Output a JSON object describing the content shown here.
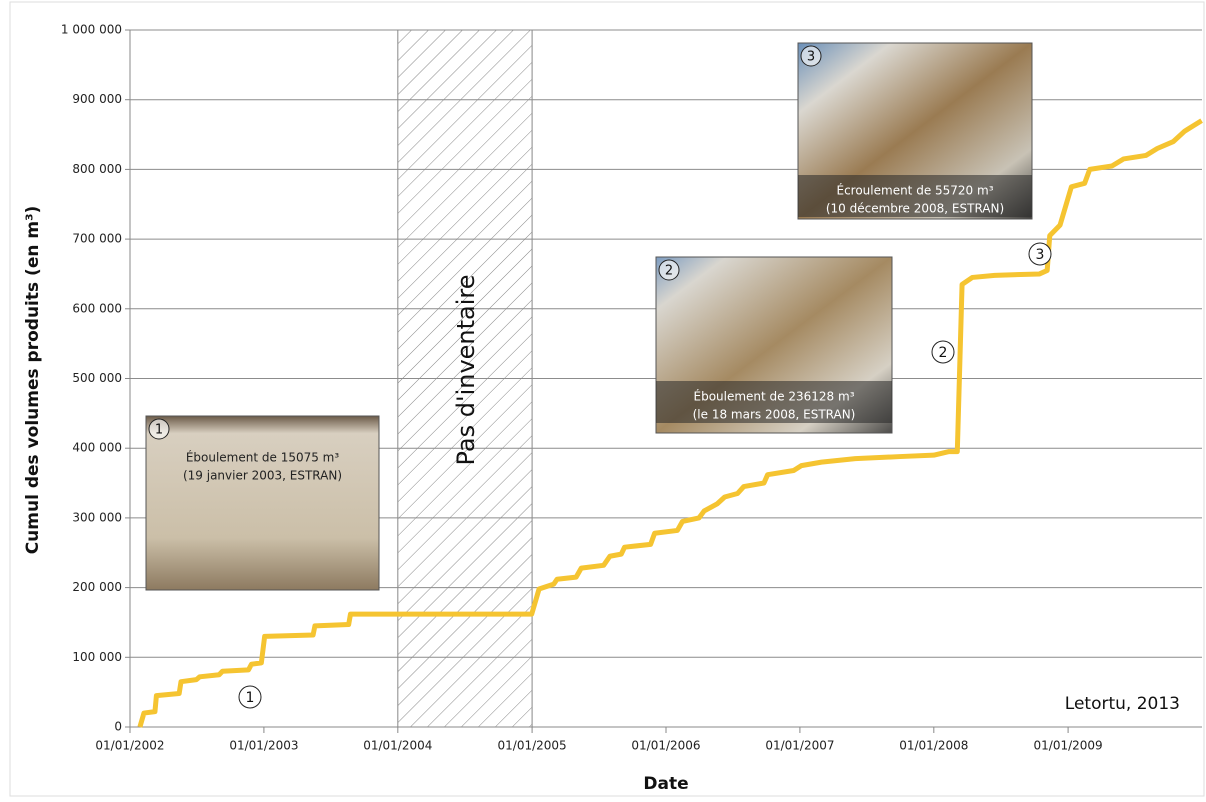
{
  "chart_data": {
    "type": "line",
    "y_label": "Cumul des volumes produits (en m³)",
    "x_label": "Date",
    "source": "Letortu, 2013",
    "color": "#f5c431",
    "grid": true,
    "xlim": [
      "2002-01-01",
      "2010-01-01"
    ],
    "ylim": [
      0,
      1000000
    ],
    "xticks": [
      {
        "value": "2002-01-01",
        "label": "01/01/2002"
      },
      {
        "value": "2003-01-01",
        "label": "01/01/2003"
      },
      {
        "value": "2004-01-01",
        "label": "01/01/2004"
      },
      {
        "value": "2005-01-01",
        "label": "01/01/2005"
      },
      {
        "value": "2006-01-01",
        "label": "01/01/2006"
      },
      {
        "value": "2007-01-01",
        "label": "01/01/2007"
      },
      {
        "value": "2008-01-01",
        "label": "01/01/2008"
      },
      {
        "value": "2009-01-01",
        "label": "01/01/2009"
      }
    ],
    "yticks": [
      0,
      {
        "value": 100000,
        "label": "100 000"
      },
      {
        "value": 200000,
        "label": "200 000"
      },
      {
        "value": 300000,
        "label": "300 000"
      },
      {
        "value": 400000,
        "label": "400 000"
      },
      {
        "value": 500000,
        "label": "500 000"
      },
      {
        "value": 600000,
        "label": "600 000"
      },
      {
        "value": 700000,
        "label": "700 000"
      },
      {
        "value": 800000,
        "label": "800 000"
      },
      {
        "value": 900000,
        "label": "900 000"
      },
      {
        "value": 1000000,
        "label": "1 000 000"
      }
    ],
    "no_inventory": {
      "label": "Pas d'inventaire",
      "range": [
        "2004-01-01",
        "2005-01-01"
      ]
    },
    "x": [
      "2002-01-28",
      "2002-02-08",
      "2002-03-10",
      "2002-03-14",
      "2002-05-15",
      "2002-05-20",
      "2002-07-01",
      "2002-07-10",
      "2002-09-01",
      "2002-09-10",
      "2002-11-20",
      "2002-11-28",
      "2002-12-25",
      "2003-01-03",
      "2003-05-15",
      "2003-05-20",
      "2003-08-20",
      "2003-08-25",
      "2004-12-31",
      "2005-01-10",
      "2005-01-20",
      "2005-03-01",
      "2005-03-10",
      "2005-05-01",
      "2005-05-15",
      "2005-07-15",
      "2005-08-01",
      "2005-09-01",
      "2005-09-10",
      "2005-11-20",
      "2005-12-01",
      "2006-02-01",
      "2006-02-15",
      "2006-04-01",
      "2006-04-15",
      "2006-05-20",
      "2006-06-10",
      "2006-07-15",
      "2006-08-01",
      "2006-09-25",
      "2006-10-05",
      "2006-12-15",
      "2007-01-05",
      "2007-03-01",
      "2007-06-01",
      "2007-10-01",
      "2008-01-01",
      "2008-02-10",
      "2008-03-05",
      "2008-03-18",
      "2008-04-15",
      "2008-06-15",
      "2008-10-15",
      "2008-11-05",
      "2008-11-12",
      "2008-12-10",
      "2009-01-10",
      "2009-02-15",
      "2009-03-01",
      "2009-05-01",
      "2009-06-01",
      "2009-08-01",
      "2009-09-01",
      "2009-10-15",
      "2009-11-15",
      "2009-12-31"
    ],
    "values": [
      0,
      20000,
      22000,
      45000,
      48000,
      65000,
      68000,
      72000,
      75000,
      80000,
      82000,
      90000,
      92000,
      130000,
      132000,
      145000,
      147000,
      162000,
      162000,
      180000,
      198000,
      205000,
      212000,
      215000,
      228000,
      232000,
      245000,
      248000,
      258000,
      262000,
      278000,
      282000,
      295000,
      300000,
      310000,
      320000,
      330000,
      335000,
      345000,
      350000,
      362000,
      368000,
      375000,
      380000,
      385000,
      388000,
      390000,
      395000,
      395000,
      635000,
      645000,
      648000,
      650000,
      655000,
      705000,
      720000,
      775000,
      780000,
      800000,
      805000,
      815000,
      820000,
      830000,
      840000,
      855000,
      870000
    ],
    "events": [
      {
        "marker": "1",
        "caption": [
          "Éboulement de 15075 m³",
          "(19 janvier 2003, ESTRAN)"
        ]
      },
      {
        "marker": "2",
        "caption": [
          "Éboulement de 236128 m³",
          "(le 18 mars 2008, ESTRAN)"
        ]
      },
      {
        "marker": "3",
        "caption": [
          "Écroulement de 55720 m³",
          "(10 décembre 2008, ESTRAN)"
        ]
      }
    ]
  }
}
